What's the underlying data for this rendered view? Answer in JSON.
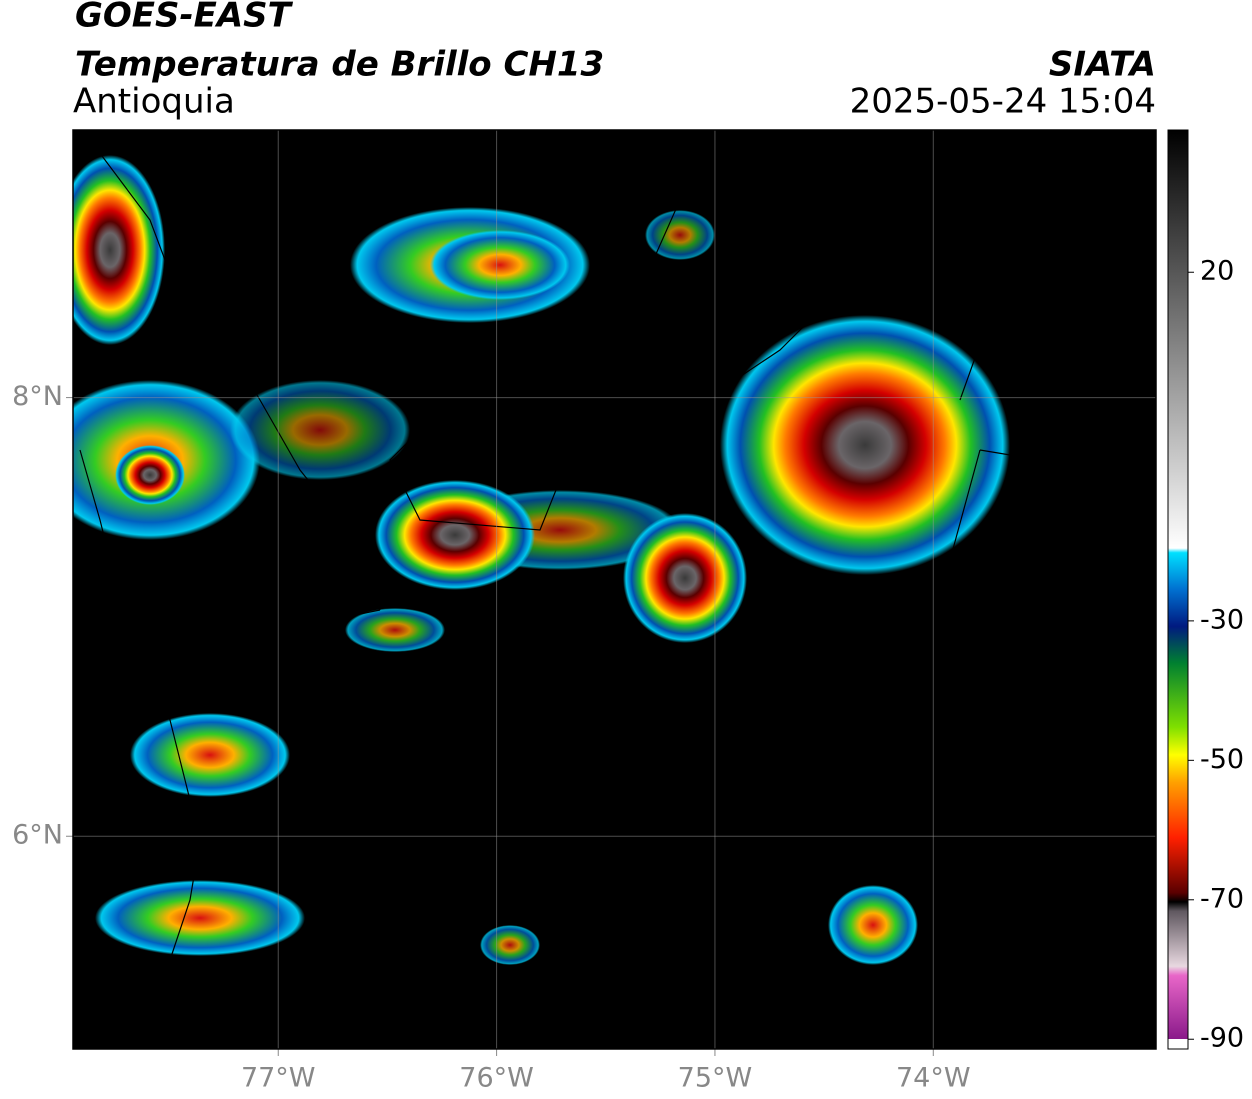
{
  "header": {
    "title": "GOES-EAST",
    "subtitle": "Temperatura de Brillo CH13",
    "region": "Antioquia",
    "agency": "SIATA",
    "datetime": "2025-05-24 15:04"
  },
  "map": {
    "xlim": [
      -77.94,
      -72.98
    ],
    "ylim": [
      5.03,
      9.22
    ],
    "xticks": [
      {
        "value": -77,
        "label": "77°W"
      },
      {
        "value": -76,
        "label": "76°W"
      },
      {
        "value": -75,
        "label": "75°W"
      },
      {
        "value": -74,
        "label": "74°W"
      }
    ],
    "yticks": [
      {
        "value": 8,
        "label": "8°N"
      },
      {
        "value": 6,
        "label": "6°N"
      }
    ],
    "grid": true
  },
  "colorbar": {
    "lim": [
      -91.4,
      40.4
    ],
    "ticks": [
      20,
      -30,
      -50,
      -70,
      -90
    ]
  }
}
